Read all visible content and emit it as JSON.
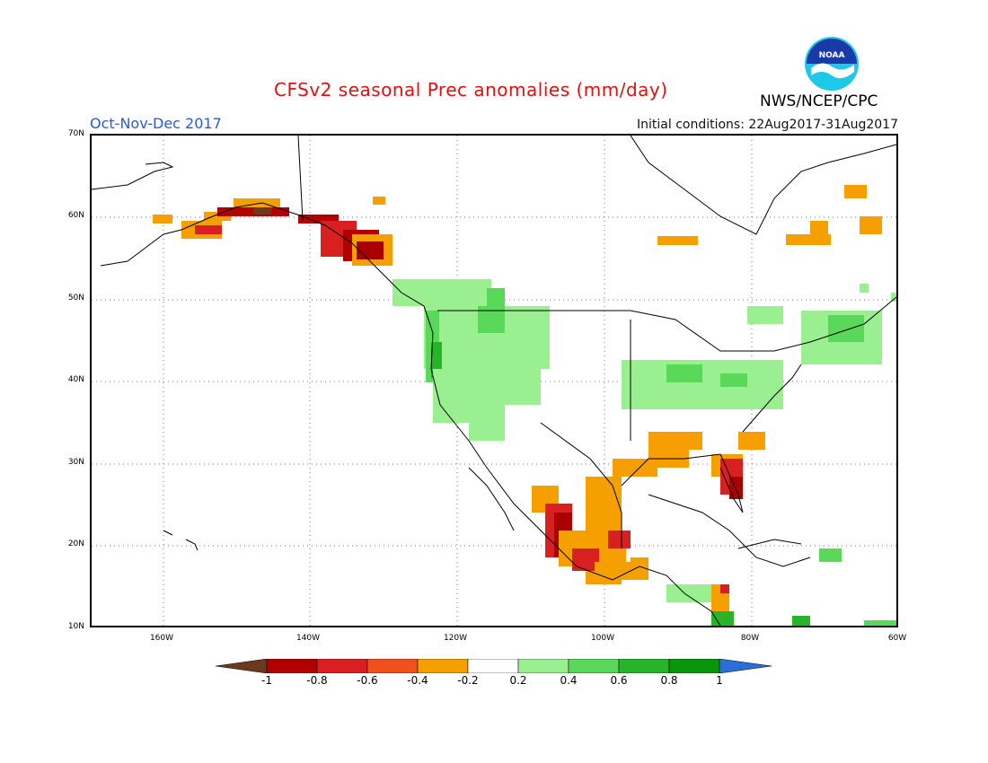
{
  "header": {
    "title": "CFSv2 seasonal Prec anomalies (mm/day)",
    "season": "Oct-Nov-Dec 2017",
    "init_conditions": "Initial conditions: 22Aug2017-31Aug2017",
    "agency": "NWS/NCEP/CPC",
    "logo_text": "NOAA"
  },
  "axes": {
    "lat_labels": [
      "70N",
      "60N",
      "50N",
      "40N",
      "30N",
      "20N",
      "10N"
    ],
    "lon_labels": [
      "160W",
      "140W",
      "120W",
      "100W",
      "80W",
      "60W"
    ]
  },
  "colorbar": {
    "labels": [
      "-1",
      "-0.8",
      "-0.6",
      "-0.4",
      "-0.2",
      "0.2",
      "0.4",
      "0.6",
      "0.8",
      "1"
    ],
    "colors": [
      "#6b3a1e",
      "#b00000",
      "#d82020",
      "#f0501a",
      "#f5a000",
      "#ffffff",
      "#9af090",
      "#5ad85a",
      "#28b428",
      "#0a960a",
      "#2a6fd8"
    ]
  },
  "colors": {
    "dry_strong": "#a80000",
    "dry_medium": "#e03a1a",
    "dry_light": "#f5a000",
    "wet_light": "#9af090",
    "wet_medium": "#5ad85a",
    "wet_strong": "#28b428"
  }
}
